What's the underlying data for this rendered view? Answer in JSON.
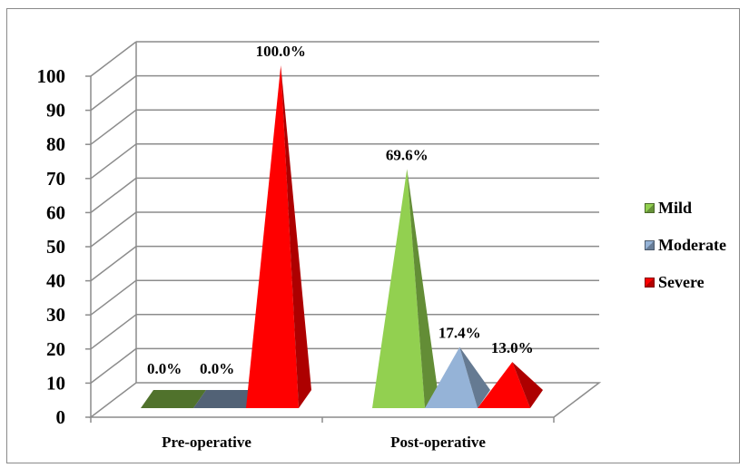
{
  "chart_data": {
    "type": "bar",
    "style": "3d-pyramid",
    "categories": [
      "Pre-operative",
      "Post-operative"
    ],
    "series": [
      {
        "name": "Mild",
        "values": [
          0.0,
          69.6
        ],
        "color": "#92d050",
        "data_labels": [
          "0.0%",
          "69.6%"
        ]
      },
      {
        "name": "Moderate",
        "values": [
          0.0,
          17.4
        ],
        "color": "#95b3d7",
        "data_labels": [
          "0.0%",
          "17.4%"
        ]
      },
      {
        "name": "Severe",
        "values": [
          100.0,
          13.0
        ],
        "color": "#ff0000",
        "data_labels": [
          "100.0%",
          "13.0%"
        ]
      }
    ],
    "y_ticks": [
      "0",
      "10",
      "20",
      "30",
      "40",
      "50",
      "60",
      "70",
      "80",
      "90",
      "100"
    ],
    "ylim": [
      0,
      100
    ],
    "grid": true,
    "legend_position": "right"
  }
}
